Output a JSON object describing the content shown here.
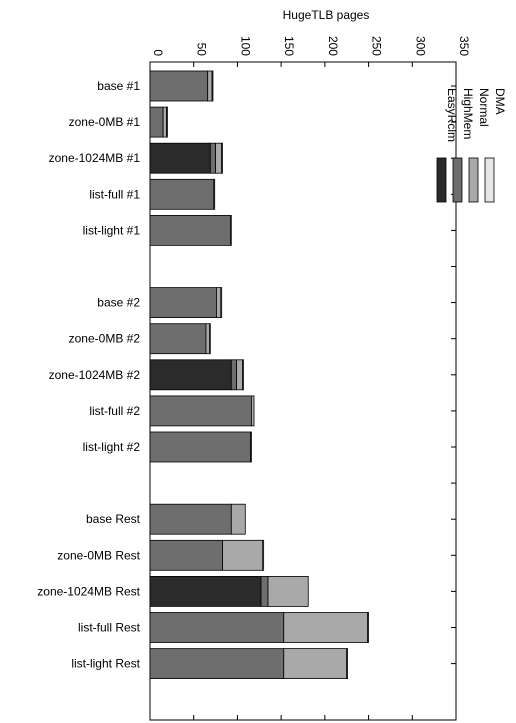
{
  "chart_data": {
    "type": "bar",
    "orientation": "horizontal",
    "stacked": true,
    "title": "HugeTLB pages",
    "xlim": [
      0,
      350
    ],
    "x_ticks": [
      "0",
      "50",
      "100",
      "150",
      "200",
      "250",
      "300",
      "350"
    ],
    "x_tick_label_rotation": 90,
    "legend_placement": "top-right",
    "categories": [
      "base  #1",
      "zone-0MB  #1",
      "zone-1024MB  #1",
      "list-full  #1",
      "list-light  #1",
      "",
      "base  #2",
      "zone-0MB  #2",
      "zone-1024MB  #2",
      "list-full  #2",
      "list-light  #2",
      "",
      "base  Rest",
      "zone-0MB  Rest",
      "zone-1024MB  Rest",
      "list-full  Rest",
      "list-light  Rest"
    ],
    "series": [
      {
        "name": "EasyRclm",
        "color": "#2b2b2b",
        "values": [
          0,
          0,
          69,
          0,
          0,
          null,
          0,
          0,
          93,
          0,
          0,
          null,
          0,
          0,
          127,
          0,
          0
        ]
      },
      {
        "name": "HighMem",
        "color": "#6e6e6e",
        "values": [
          66,
          15,
          6,
          73,
          92,
          null,
          76,
          64,
          6,
          116,
          115,
          null,
          93,
          83,
          8,
          153,
          153
        ]
      },
      {
        "name": "Normal",
        "color": "#a9a9a9",
        "values": [
          5,
          4,
          7,
          1,
          1,
          null,
          5,
          4,
          7,
          3,
          1,
          null,
          16,
          46,
          46,
          96,
          72
        ]
      },
      {
        "name": "DMA",
        "color": "#e6e6e6",
        "values": [
          1,
          1,
          1,
          0,
          0,
          null,
          1,
          1,
          1,
          0,
          0,
          null,
          0,
          1,
          0,
          1,
          1
        ]
      }
    ]
  }
}
